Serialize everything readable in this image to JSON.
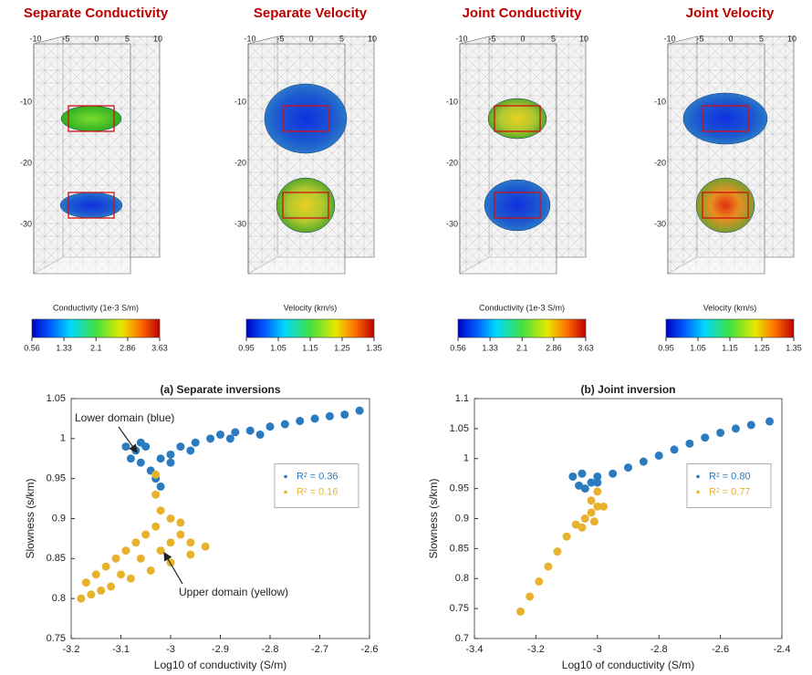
{
  "renderings": [
    {
      "title": "Separate Conductivity",
      "colorbar_label": "Conductivity (1e-3 S/m)",
      "colorbar_ticks": [
        0.56,
        1.33,
        2.1,
        2.86,
        3.63
      ],
      "top_ticks": [
        -10,
        -5,
        0,
        5,
        10
      ],
      "depth_ticks": [
        -10,
        -20,
        -30
      ]
    },
    {
      "title": "Separate Velocity",
      "colorbar_label": "Velocity (km/s)",
      "colorbar_ticks": [
        0.95,
        1.05,
        1.15,
        1.25,
        1.35
      ],
      "top_ticks": [
        -10,
        -5,
        0,
        5,
        10
      ],
      "depth_ticks": [
        -10,
        -20,
        -30
      ]
    },
    {
      "title": "Joint Conductivity",
      "colorbar_label": "Conductivity (1e-3 S/m)",
      "colorbar_ticks": [
        0.56,
        1.33,
        2.1,
        2.86,
        3.63
      ],
      "top_ticks": [
        -10,
        -5,
        0,
        5,
        10
      ],
      "depth_ticks": [
        -10,
        -20,
        -30
      ]
    },
    {
      "title": "Joint Velocity",
      "colorbar_label": "Velocity (km/s)",
      "colorbar_ticks": [
        0.95,
        1.05,
        1.15,
        1.25,
        1.35
      ],
      "top_ticks": [
        -10,
        -5,
        0,
        5,
        10
      ],
      "depth_ticks": [
        -10,
        -20,
        -30
      ]
    }
  ],
  "chart_data": [
    {
      "type": "scatter",
      "title": "(a) Separate inversions",
      "x_label": "Log10 of conductivity (S/m)",
      "y_label": "Slowness (s/km)",
      "xlim": [
        -3.2,
        -2.6
      ],
      "xticks": [
        -3.2,
        -3.1,
        -3,
        -2.9,
        -2.8,
        -2.7,
        -2.6
      ],
      "ylim": [
        0.75,
        1.05
      ],
      "yticks": [
        0.75,
        0.8,
        0.85,
        0.9,
        0.95,
        1,
        1.05
      ],
      "legend": "center right",
      "annotations": [
        "Lower domain (blue)",
        "Upper domain (yellow)"
      ],
      "series": [
        {
          "name": "R² = 0.36",
          "color": "#2a7bc0",
          "x": [
            -3.09,
            -3.08,
            -3.07,
            -3.06,
            -3.05,
            -3.04,
            -3.03,
            -3.02,
            -3.02,
            -3.0,
            -2.98,
            -2.95,
            -2.92,
            -2.9,
            -2.87,
            -2.84,
            -2.8,
            -2.77,
            -2.74,
            -2.71,
            -2.68,
            -2.65,
            -2.62,
            -3.0,
            -2.96,
            -3.06,
            -2.88,
            -2.82
          ],
          "values": [
            0.99,
            0.975,
            0.985,
            0.97,
            0.99,
            0.96,
            0.95,
            0.94,
            0.975,
            0.98,
            0.99,
            0.995,
            1.0,
            1.005,
            1.008,
            1.01,
            1.015,
            1.018,
            1.022,
            1.025,
            1.028,
            1.03,
            1.035,
            0.97,
            0.985,
            0.995,
            1.0,
            1.005
          ]
        },
        {
          "name": "R² = 0.16",
          "color": "#e8b22e",
          "x": [
            -3.03,
            -3.03,
            -3.02,
            -3.03,
            -3.05,
            -3.07,
            -3.09,
            -3.11,
            -3.13,
            -3.15,
            -3.17,
            -3.18,
            -3.16,
            -3.12,
            -3.08,
            -3.04,
            -3.0,
            -2.96,
            -2.93,
            -2.96,
            -3.0,
            -3.0,
            -2.98,
            -3.1,
            -3.06,
            -3.14,
            -3.02,
            -2.98
          ],
          "values": [
            0.955,
            0.93,
            0.91,
            0.89,
            0.88,
            0.87,
            0.86,
            0.85,
            0.84,
            0.83,
            0.82,
            0.8,
            0.805,
            0.815,
            0.825,
            0.835,
            0.845,
            0.855,
            0.865,
            0.87,
            0.87,
            0.9,
            0.88,
            0.83,
            0.85,
            0.81,
            0.86,
            0.895
          ]
        }
      ]
    },
    {
      "type": "scatter",
      "title": "(b) Joint inversion",
      "x_label": "Log10 of conductivity (S/m)",
      "y_label": "Slowness (s/km)",
      "xlim": [
        -3.4,
        -2.4
      ],
      "xticks": [
        -3.4,
        -3.2,
        -3,
        -2.8,
        -2.6,
        -2.4
      ],
      "ylim": [
        0.7,
        1.1
      ],
      "yticks": [
        0.7,
        0.75,
        0.8,
        0.85,
        0.9,
        0.95,
        1,
        1.05,
        1.1
      ],
      "legend": "center right",
      "series": [
        {
          "name": "R² = 0.80",
          "color": "#2a7bc0",
          "x": [
            -3.08,
            -3.06,
            -3.04,
            -3.02,
            -3.0,
            -2.95,
            -2.9,
            -2.85,
            -2.8,
            -2.75,
            -2.7,
            -2.65,
            -2.6,
            -2.55,
            -2.5,
            -2.44,
            -3.05,
            -3.0
          ],
          "values": [
            0.97,
            0.955,
            0.95,
            0.96,
            0.97,
            0.975,
            0.985,
            0.995,
            1.005,
            1.015,
            1.025,
            1.035,
            1.043,
            1.05,
            1.056,
            1.062,
            0.975,
            0.96
          ]
        },
        {
          "name": "R² = 0.77",
          "color": "#e8b22e",
          "x": [
            -3.25,
            -3.22,
            -3.19,
            -3.16,
            -3.13,
            -3.1,
            -3.07,
            -3.04,
            -3.02,
            -3.0,
            -3.02,
            -3.0,
            -2.98,
            -3.01,
            -3.05
          ],
          "values": [
            0.745,
            0.77,
            0.795,
            0.82,
            0.845,
            0.87,
            0.89,
            0.9,
            0.91,
            0.92,
            0.93,
            0.945,
            0.92,
            0.895,
            0.885
          ]
        }
      ]
    }
  ]
}
